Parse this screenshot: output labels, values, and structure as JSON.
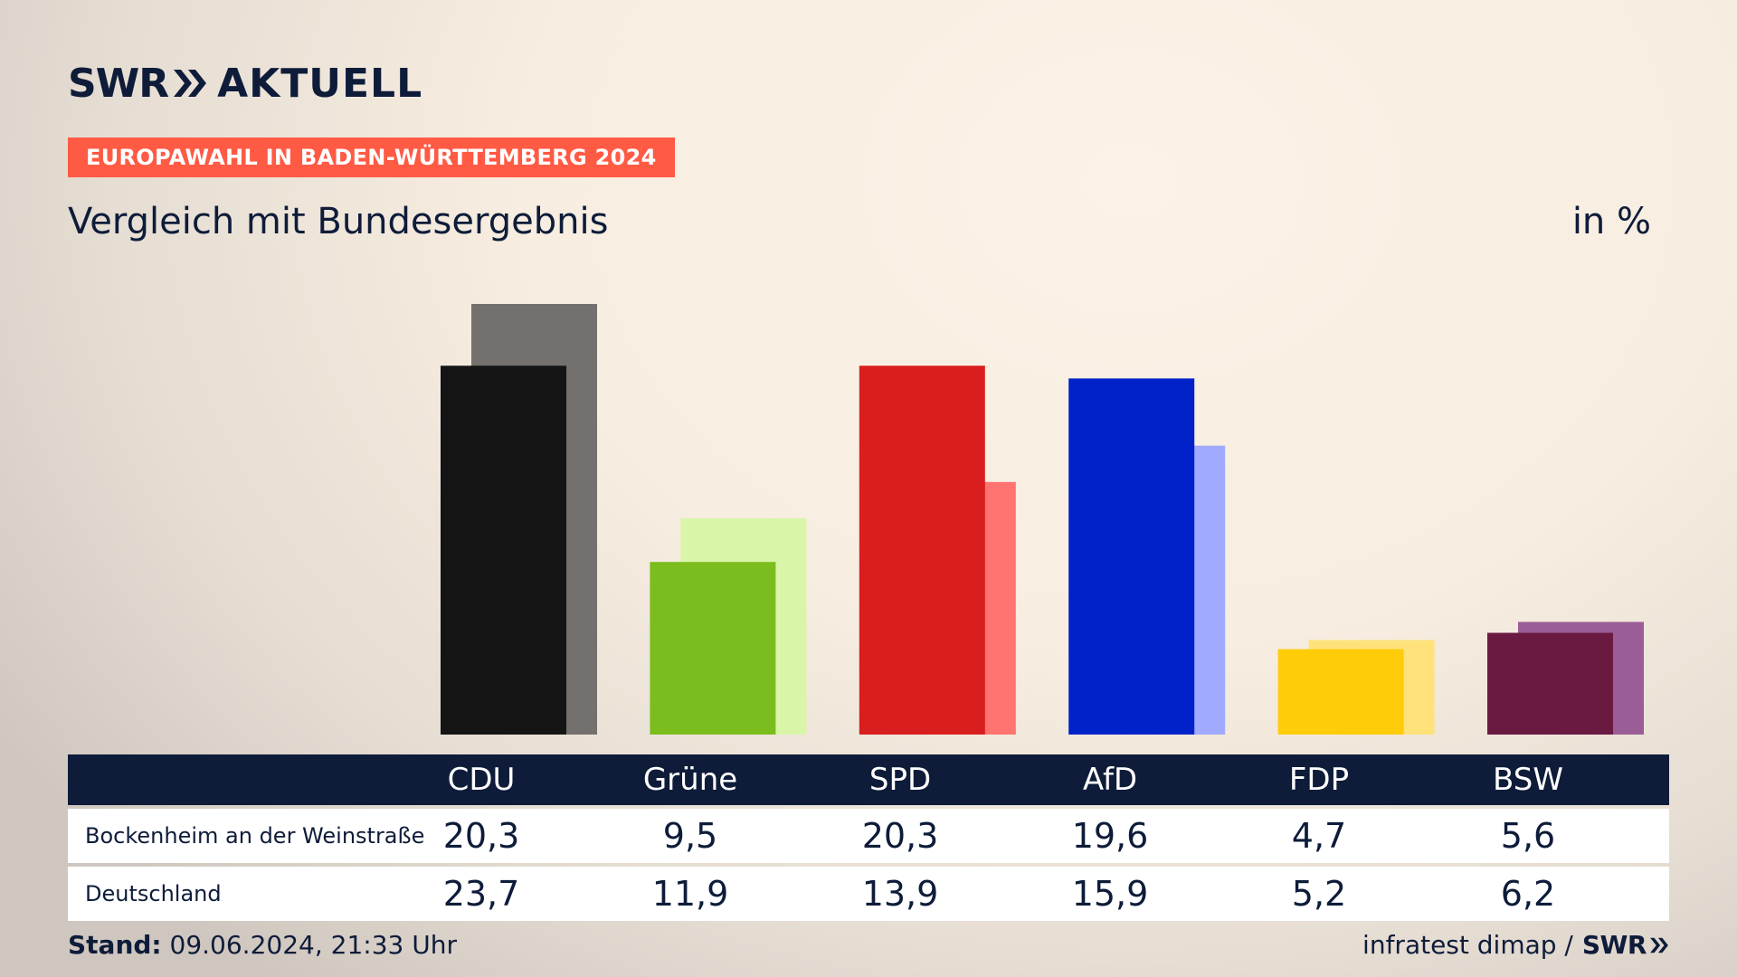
{
  "header": {
    "brand_swr": "SWR",
    "brand_name": "AKTUELL",
    "tag": "EUROPAWAHL IN BADEN-WÜRTTEMBERG 2024",
    "subtitle": "Vergleich mit Bundesergebnis",
    "unit": "in %"
  },
  "chart_data": {
    "type": "bar",
    "categories": [
      "CDU",
      "Grüne",
      "SPD",
      "AfD",
      "FDP",
      "BSW"
    ],
    "series": [
      {
        "name": "Bockenheim an der Weinstraße",
        "values": [
          20.3,
          9.5,
          20.3,
          19.6,
          4.7,
          5.6
        ],
        "colors": [
          "#141414",
          "#7bbd1e",
          "#d81e1e",
          "#0022c8",
          "#ffcc0a",
          "#6a1a41"
        ]
      },
      {
        "name": "Deutschland",
        "values": [
          23.7,
          11.9,
          13.9,
          15.9,
          5.2,
          6.2
        ],
        "colors": [
          "#73706d",
          "#d8f5a8",
          "#ff7370",
          "#a0aafe",
          "#ffe27a",
          "#9b5d98"
        ]
      }
    ],
    "ylim": [
      0,
      23.7
    ],
    "grid": false,
    "table": {
      "columns": [
        "CDU",
        "Grüne",
        "SPD",
        "AfD",
        "FDP",
        "BSW"
      ],
      "rows": [
        {
          "label": "Bockenheim an der Weinstraße",
          "values": [
            "20,3",
            "9,5",
            "20,3",
            "19,6",
            "4,7",
            "5,6"
          ]
        },
        {
          "label": "Deutschland",
          "values": [
            "23,7",
            "11,9",
            "13,9",
            "15,9",
            "5,2",
            "6,2"
          ]
        }
      ]
    }
  },
  "footer": {
    "stand_label": "Stand:",
    "stand_value": " 09.06.2024, 21:33 Uhr",
    "source": "infratest dimap /",
    "source_brand": "SWR"
  }
}
